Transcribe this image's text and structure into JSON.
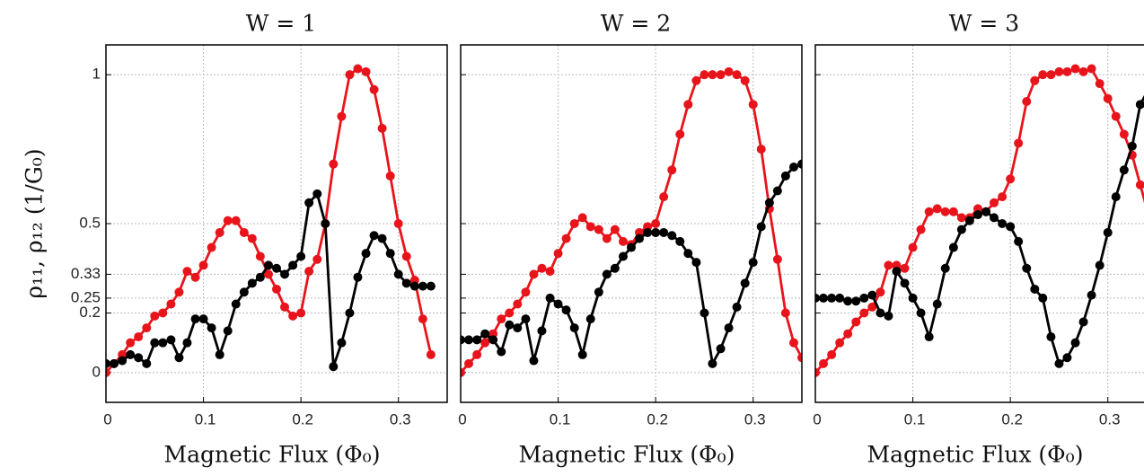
{
  "chart_data": [
    {
      "type": "line",
      "title": "W = 1",
      "xlabel": "Magnetic Flux (Φ₀)",
      "ylabel": "ρ₁₁, ρ₁₂ (1/G₀)",
      "x": [
        0,
        0.0083,
        0.0167,
        0.025,
        0.0333,
        0.0417,
        0.05,
        0.0583,
        0.0667,
        0.075,
        0.0833,
        0.0917,
        0.1,
        0.1083,
        0.1167,
        0.125,
        0.1333,
        0.1417,
        0.15,
        0.1583,
        0.1667,
        0.175,
        0.1833,
        0.1917,
        0.2,
        0.2083,
        0.2167,
        0.225,
        0.2333,
        0.2417,
        0.25,
        0.2583,
        0.2667,
        0.275,
        0.2833,
        0.2917,
        0.3,
        0.3083,
        0.3167,
        0.325,
        0.3333
      ],
      "series": [
        {
          "color": "#e8141b",
          "values": [
            0,
            0.03,
            0.06,
            0.1,
            0.12,
            0.15,
            0.19,
            0.2,
            0.23,
            0.27,
            0.34,
            0.32,
            0.36,
            0.42,
            0.47,
            0.51,
            0.51,
            0.47,
            0.45,
            0.39,
            0.33,
            0.28,
            0.22,
            0.19,
            0.2,
            0.34,
            0.38,
            0.5,
            0.7,
            0.86,
            1.0,
            1.02,
            1.01,
            0.95,
            0.82,
            0.66,
            0.5,
            0.39,
            0.31,
            0.18,
            0.06
          ]
        },
        {
          "color": "#000000",
          "values": [
            0.03,
            0.03,
            0.04,
            0.06,
            0.05,
            0.03,
            0.1,
            0.1,
            0.11,
            0.05,
            0.1,
            0.18,
            0.18,
            0.15,
            0.06,
            0.14,
            0.23,
            0.27,
            0.3,
            0.32,
            0.36,
            0.35,
            0.33,
            0.36,
            0.39,
            0.57,
            0.6,
            0.5,
            0.02,
            0.1,
            0.2,
            0.32,
            0.4,
            0.46,
            0.45,
            0.4,
            0.33,
            0.3,
            0.29,
            0.29,
            0.29
          ]
        }
      ],
      "xlim": [
        0,
        0.35
      ],
      "ylim": [
        -0.1,
        1.1
      ],
      "xticks": [
        0,
        0.1,
        0.2,
        0.3
      ],
      "yticks": [
        0,
        0.2,
        0.25,
        0.33,
        0.5,
        1
      ],
      "grid": true,
      "show_ytick_labels": true
    },
    {
      "type": "line",
      "title": "W = 2",
      "xlabel": "Magnetic Flux (Φ₀)",
      "x": [
        0,
        0.0083,
        0.0167,
        0.025,
        0.0333,
        0.0417,
        0.05,
        0.0583,
        0.0667,
        0.075,
        0.0833,
        0.0917,
        0.1,
        0.1083,
        0.1167,
        0.125,
        0.1333,
        0.1417,
        0.15,
        0.1583,
        0.1667,
        0.175,
        0.1833,
        0.1917,
        0.2,
        0.2083,
        0.2167,
        0.225,
        0.2333,
        0.2417,
        0.25,
        0.2583,
        0.2667,
        0.275,
        0.2833,
        0.2917,
        0.3,
        0.3083,
        0.3167,
        0.325,
        0.3333,
        0.3417,
        0.35
      ],
      "series": [
        {
          "color": "#e8141b",
          "values": [
            0,
            0.03,
            0.06,
            0.1,
            0.13,
            0.18,
            0.2,
            0.23,
            0.27,
            0.33,
            0.35,
            0.34,
            0.4,
            0.45,
            0.5,
            0.52,
            0.49,
            0.48,
            0.45,
            0.48,
            0.44,
            0.43,
            0.47,
            0.49,
            0.5,
            0.59,
            0.68,
            0.8,
            0.9,
            0.98,
            1.0,
            1.0,
            1.0,
            1.01,
            1.0,
            0.98,
            0.9,
            0.75,
            0.55,
            0.38,
            0.2,
            0.1,
            0.05
          ]
        },
        {
          "color": "#000000",
          "values": [
            0.11,
            0.11,
            0.11,
            0.13,
            0.11,
            0.07,
            0.16,
            0.15,
            0.18,
            0.04,
            0.14,
            0.25,
            0.23,
            0.21,
            0.15,
            0.06,
            0.18,
            0.27,
            0.33,
            0.35,
            0.39,
            0.42,
            0.45,
            0.47,
            0.47,
            0.47,
            0.46,
            0.44,
            0.4,
            0.37,
            0.2,
            0.03,
            0.08,
            0.15,
            0.22,
            0.3,
            0.37,
            0.49,
            0.57,
            0.61,
            0.66,
            0.69,
            0.7
          ]
        }
      ],
      "xlim": [
        0,
        0.35
      ],
      "ylim": [
        -0.1,
        1.1
      ],
      "xticks": [
        0,
        0.1,
        0.2,
        0.3
      ],
      "yticks": [
        0,
        0.2,
        0.25,
        0.33,
        0.5,
        1
      ],
      "grid": true,
      "show_ytick_labels": false
    },
    {
      "type": "line",
      "title": "W = 3",
      "xlabel": "Magnetic Flux (Φ₀)",
      "x": [
        0,
        0.0083,
        0.0167,
        0.025,
        0.0333,
        0.0417,
        0.05,
        0.0583,
        0.0667,
        0.075,
        0.0833,
        0.0917,
        0.1,
        0.1083,
        0.1167,
        0.125,
        0.1333,
        0.1417,
        0.15,
        0.1583,
        0.1667,
        0.175,
        0.1833,
        0.1917,
        0.2,
        0.2083,
        0.2167,
        0.225,
        0.2333,
        0.2417,
        0.25,
        0.2583,
        0.2667,
        0.275,
        0.2833,
        0.2917,
        0.3,
        0.3083,
        0.3167,
        0.325,
        0.3333,
        0.3417
      ],
      "series": [
        {
          "color": "#e8141b",
          "values": [
            0,
            0.03,
            0.06,
            0.1,
            0.13,
            0.17,
            0.2,
            0.22,
            0.27,
            0.36,
            0.36,
            0.35,
            0.42,
            0.48,
            0.54,
            0.55,
            0.54,
            0.54,
            0.52,
            0.52,
            0.55,
            0.54,
            0.57,
            0.59,
            0.65,
            0.77,
            0.91,
            0.98,
            1.0,
            1.0,
            1.01,
            1.01,
            1.02,
            1.01,
            1.02,
            0.97,
            0.92,
            0.86,
            0.8,
            0.73,
            0.63,
            0.53
          ]
        },
        {
          "color": "#000000",
          "values": [
            0.25,
            0.25,
            0.25,
            0.25,
            0.24,
            0.24,
            0.25,
            0.26,
            0.2,
            0.19,
            0.34,
            0.3,
            0.25,
            0.2,
            0.12,
            0.23,
            0.35,
            0.42,
            0.48,
            0.51,
            0.53,
            0.54,
            0.52,
            0.5,
            0.49,
            0.44,
            0.35,
            0.28,
            0.25,
            0.12,
            0.03,
            0.05,
            0.1,
            0.17,
            0.26,
            0.36,
            0.47,
            0.59,
            0.68,
            0.76,
            0.9,
            0.95
          ]
        }
      ],
      "xlim": [
        0,
        0.35
      ],
      "ylim": [
        -0.1,
        1.1
      ],
      "xticks": [
        0,
        0.1,
        0.2,
        0.3
      ],
      "yticks": [
        0,
        0.2,
        0.25,
        0.33,
        0.5,
        1
      ],
      "grid": true,
      "show_ytick_labels": false
    }
  ]
}
